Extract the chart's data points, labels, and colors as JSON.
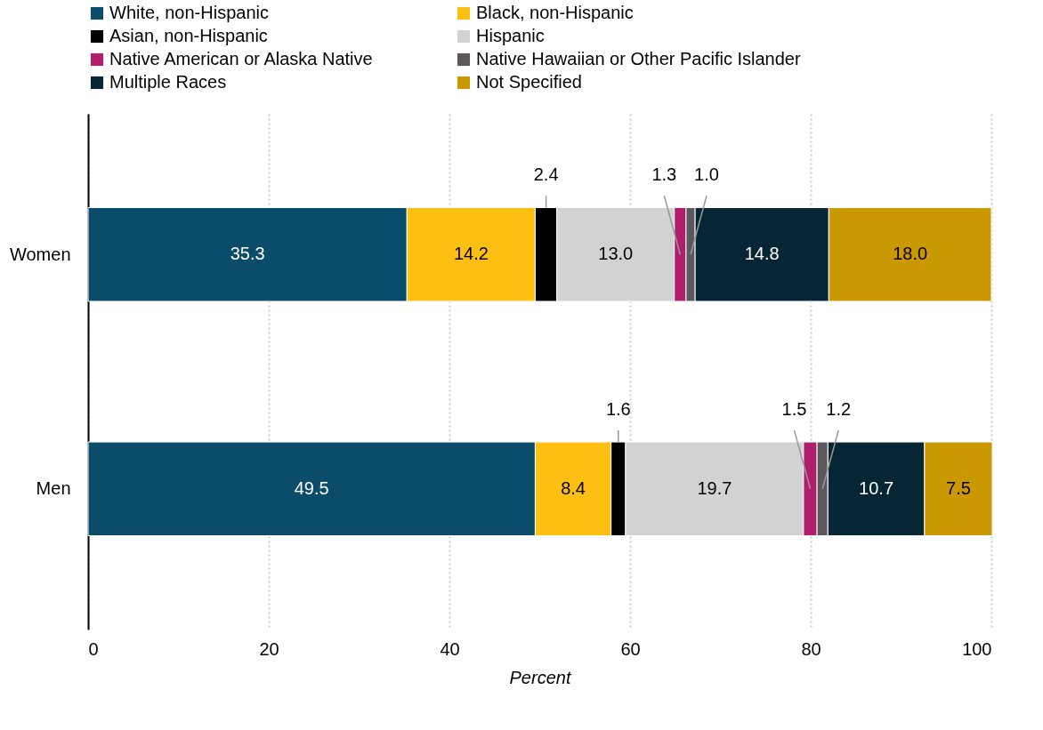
{
  "chart_data": {
    "type": "bar",
    "orientation": "horizontal",
    "stacked": true,
    "grid": "x",
    "legend": "top",
    "xlabel": "Percent",
    "xlim": [
      0,
      100
    ],
    "xticks": [
      0,
      20,
      40,
      60,
      80,
      100
    ],
    "categories": [
      "Women",
      "Men"
    ],
    "series": [
      {
        "name": "White, non-Hispanic",
        "color": "#0a4c6a",
        "values": [
          35.3,
          49.5
        ],
        "value_labels": [
          "35.3",
          "49.5"
        ]
      },
      {
        "name": "Black, non-Hispanic",
        "color": "#fdbf11",
        "values": [
          14.2,
          8.4
        ],
        "value_labels": [
          "14.2",
          "8.4"
        ]
      },
      {
        "name": "Asian, non-Hispanic",
        "color": "#000000",
        "values": [
          2.4,
          1.6
        ],
        "value_labels": [
          "2.4",
          "1.6"
        ]
      },
      {
        "name": "Hispanic",
        "color": "#d2d2d2",
        "values": [
          13.0,
          19.7
        ],
        "value_labels": [
          "13.0",
          "19.7"
        ]
      },
      {
        "name": "Native American or Alaska Native",
        "color": "#af1f6b",
        "values": [
          1.3,
          1.5
        ],
        "value_labels": [
          "1.3",
          "1.5"
        ]
      },
      {
        "name": "Native Hawaiian or Other Pacific Islander",
        "color": "#5c5859",
        "values": [
          1.0,
          1.2
        ],
        "value_labels": [
          "1.0",
          "1.2"
        ]
      },
      {
        "name": "Multiple Races",
        "color": "#062635",
        "values": [
          14.8,
          10.7
        ],
        "value_labels": [
          "14.8",
          "10.7"
        ]
      },
      {
        "name": "Not Specified",
        "color": "#ca9800",
        "values": [
          18.0,
          7.5
        ],
        "value_labels": [
          "18.0",
          "7.5"
        ]
      }
    ]
  }
}
